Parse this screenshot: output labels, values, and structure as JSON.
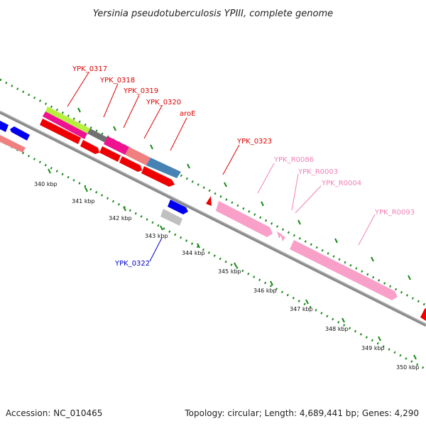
{
  "title": "Yersinia pseudotuberculosis YPIII, complete genome",
  "footer": {
    "accession": "Accession: NC_010465",
    "summary": "Topology: circular; Length: 4,689,441 bp; Genes: 4,290"
  },
  "scale": {
    "unit": "kbp",
    "ticks": [
      "340 kbp",
      "341 kbp",
      "342 kbp",
      "343 kbp",
      "344 kbp",
      "345 kbp",
      "346 kbp",
      "347 kbp",
      "348 kbp",
      "349 kbp",
      "350 kbp"
    ]
  },
  "gene_labels": [
    {
      "text": "YPK_0317",
      "color": "#dd0000"
    },
    {
      "text": "YPK_0318",
      "color": "#dd0000"
    },
    {
      "text": "YPK_0319",
      "color": "#dd0000"
    },
    {
      "text": "YPK_0320",
      "color": "#dd0000"
    },
    {
      "text": "aroE",
      "color": "#dd0000"
    },
    {
      "text": "YPK_0323",
      "color": "#dd0000"
    },
    {
      "text": "YPK_R0086",
      "color": "#f080b8"
    },
    {
      "text": "YPK_R0003",
      "color": "#f080b8"
    },
    {
      "text": "YPK_R0004",
      "color": "#f080b8"
    },
    {
      "text": "YPK_R0093",
      "color": "#f080b8"
    },
    {
      "text": "YPK_0322",
      "color": "#0000cc"
    }
  ],
  "colors": {
    "backbone": "#8a8a8a",
    "tick_green": "#1a8a1a",
    "cds_red": "#ee0000",
    "cds_blue": "#0000ee",
    "rna_pink": "#f8a0c8",
    "lime": "#b8f040",
    "magenta": "#ee1190",
    "salmon": "#f08080",
    "steel_blue": "#4682b4",
    "dark_gray": "#707070",
    "light_gray": "#c0c0c0"
  }
}
